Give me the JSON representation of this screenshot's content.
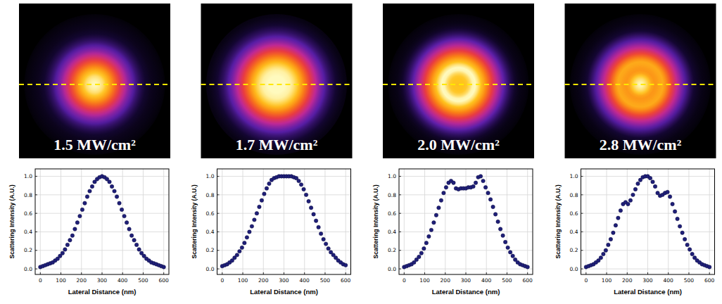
{
  "chart_data": [
    {
      "type": "scatter",
      "title": "1.5 MW/cm²",
      "x_label": "Lateral Distance (nm)",
      "y_label": "Scattering Intensity (A.U.)",
      "x": [
        0,
        12,
        24,
        36,
        48,
        60,
        72,
        84,
        96,
        108,
        120,
        132,
        144,
        156,
        168,
        180,
        192,
        204,
        216,
        228,
        240,
        252,
        264,
        276,
        288,
        300,
        312,
        324,
        336,
        348,
        360,
        372,
        384,
        396,
        408,
        420,
        432,
        444,
        456,
        468,
        480,
        492,
        504,
        516,
        528,
        540,
        552,
        564,
        576,
        588,
        600
      ],
      "values": [
        0.02,
        0.03,
        0.04,
        0.05,
        0.06,
        0.07,
        0.09,
        0.11,
        0.14,
        0.17,
        0.21,
        0.26,
        0.31,
        0.36,
        0.43,
        0.5,
        0.57,
        0.64,
        0.71,
        0.78,
        0.84,
        0.89,
        0.94,
        0.97,
        0.99,
        1.0,
        0.99,
        0.97,
        0.94,
        0.89,
        0.84,
        0.78,
        0.71,
        0.64,
        0.57,
        0.5,
        0.43,
        0.36,
        0.31,
        0.26,
        0.21,
        0.17,
        0.14,
        0.11,
        0.09,
        0.07,
        0.06,
        0.05,
        0.04,
        0.03,
        0.02
      ],
      "xlim": [
        -25,
        625
      ],
      "ylim": [
        -0.06,
        1.08
      ],
      "xticks": [
        0,
        100,
        200,
        300,
        400,
        500,
        600
      ],
      "yticks": [
        {
          "value": 0,
          "label": "0.0"
        },
        {
          "value": 0.2,
          "label": "0.2"
        },
        {
          "value": 0.4,
          "label": "0.4"
        },
        {
          "value": 0.6,
          "label": "0.6"
        },
        {
          "value": 0.8,
          "label": "0.8"
        },
        {
          "value": 1,
          "label": "1.0"
        }
      ],
      "grid": true,
      "marker": "circle",
      "color": "#1f1f78"
    },
    {
      "type": "scatter",
      "title": "1.7 MW/cm²",
      "x_label": "Lateral Distance (nm)",
      "y_label": "Scattering Intensity (A.U.)",
      "x": [
        0,
        12,
        24,
        36,
        48,
        60,
        72,
        84,
        96,
        108,
        120,
        132,
        144,
        156,
        168,
        180,
        192,
        204,
        216,
        228,
        240,
        252,
        264,
        276,
        288,
        300,
        312,
        324,
        336,
        348,
        360,
        372,
        384,
        396,
        408,
        420,
        432,
        444,
        456,
        468,
        480,
        492,
        504,
        516,
        528,
        540,
        552,
        564,
        576,
        588,
        600
      ],
      "values": [
        0.03,
        0.04,
        0.05,
        0.07,
        0.09,
        0.12,
        0.15,
        0.19,
        0.23,
        0.28,
        0.34,
        0.4,
        0.46,
        0.53,
        0.6,
        0.67,
        0.74,
        0.81,
        0.87,
        0.92,
        0.96,
        0.98,
        0.99,
        1,
        1,
        1,
        1,
        1,
        1,
        0.99,
        0.98,
        0.95,
        0.91,
        0.86,
        0.8,
        0.73,
        0.66,
        0.59,
        0.52,
        0.45,
        0.38,
        0.32,
        0.27,
        0.22,
        0.18,
        0.15,
        0.12,
        0.09,
        0.07,
        0.05,
        0.04
      ],
      "xlim": [
        -25,
        625
      ],
      "ylim": [
        -0.06,
        1.08
      ],
      "xticks": [
        0,
        100,
        200,
        300,
        400,
        500,
        600
      ],
      "yticks": [
        {
          "value": 0,
          "label": "0.0"
        },
        {
          "value": 0.2,
          "label": "0.2"
        },
        {
          "value": 0.4,
          "label": "0.4"
        },
        {
          "value": 0.6,
          "label": "0.6"
        },
        {
          "value": 0.8,
          "label": "0.8"
        },
        {
          "value": 1,
          "label": "1.0"
        }
      ],
      "grid": true,
      "marker": "circle",
      "color": "#1f1f78"
    },
    {
      "type": "scatter",
      "title": "2.0 MW/cm²",
      "x_label": "Lateral Distance (nm)",
      "y_label": "Scattering Intensity (A.U.)",
      "x": [
        0,
        12,
        24,
        36,
        48,
        60,
        72,
        84,
        96,
        108,
        120,
        132,
        144,
        156,
        168,
        180,
        192,
        204,
        216,
        228,
        240,
        252,
        264,
        276,
        288,
        300,
        312,
        324,
        336,
        348,
        360,
        372,
        384,
        396,
        408,
        420,
        432,
        444,
        456,
        468,
        480,
        492,
        504,
        516,
        528,
        540,
        552,
        564,
        576,
        588,
        600
      ],
      "values": [
        0.02,
        0.03,
        0.04,
        0.05,
        0.07,
        0.1,
        0.13,
        0.17,
        0.22,
        0.28,
        0.35,
        0.42,
        0.5,
        0.58,
        0.66,
        0.74,
        0.82,
        0.88,
        0.93,
        0.95,
        0.93,
        0.87,
        0.86,
        0.87,
        0.87,
        0.87,
        0.88,
        0.88,
        0.89,
        0.93,
        0.99,
        1.0,
        0.95,
        0.88,
        0.82,
        0.75,
        0.67,
        0.59,
        0.51,
        0.43,
        0.36,
        0.29,
        0.23,
        0.18,
        0.14,
        0.1,
        0.07,
        0.05,
        0.04,
        0.03,
        0.02
      ],
      "xlim": [
        -25,
        625
      ],
      "ylim": [
        -0.06,
        1.08
      ],
      "xticks": [
        0,
        100,
        200,
        300,
        400,
        500,
        600
      ],
      "yticks": [
        {
          "value": 0,
          "label": "0.0"
        },
        {
          "value": 0.2,
          "label": "0.2"
        },
        {
          "value": 0.4,
          "label": "0.4"
        },
        {
          "value": 0.6,
          "label": "0.6"
        },
        {
          "value": 0.8,
          "label": "0.8"
        },
        {
          "value": 1,
          "label": "1.0"
        }
      ],
      "grid": true,
      "marker": "circle",
      "color": "#1f1f78"
    },
    {
      "type": "scatter",
      "title": "2.8 MW/cm²",
      "x_label": "Lateral Distance (nm)",
      "y_label": "Scattering Intensity (A.U.)",
      "x": [
        0,
        12,
        24,
        36,
        48,
        60,
        72,
        84,
        96,
        108,
        120,
        132,
        144,
        156,
        168,
        180,
        192,
        204,
        216,
        228,
        240,
        252,
        264,
        276,
        288,
        300,
        312,
        324,
        336,
        348,
        360,
        372,
        384,
        396,
        408,
        420,
        432,
        444,
        456,
        468,
        480,
        492,
        504,
        516,
        528,
        540,
        552,
        564,
        576,
        588,
        600
      ],
      "values": [
        0.02,
        0.03,
        0.04,
        0.05,
        0.07,
        0.09,
        0.12,
        0.16,
        0.2,
        0.26,
        0.32,
        0.39,
        0.47,
        0.55,
        0.63,
        0.7,
        0.72,
        0.7,
        0.74,
        0.8,
        0.86,
        0.92,
        0.96,
        0.99,
        1.0,
        1.0,
        0.98,
        0.94,
        0.89,
        0.82,
        0.79,
        0.8,
        0.82,
        0.83,
        0.78,
        0.7,
        0.62,
        0.54,
        0.46,
        0.39,
        0.32,
        0.26,
        0.21,
        0.16,
        0.12,
        0.09,
        0.07,
        0.05,
        0.04,
        0.03,
        0.02
      ],
      "xlim": [
        -25,
        625
      ],
      "ylim": [
        -0.06,
        1.08
      ],
      "xticks": [
        0,
        100,
        200,
        300,
        400,
        500,
        600
      ],
      "yticks": [
        {
          "value": 0,
          "label": "0.0"
        },
        {
          "value": 0.2,
          "label": "0.2"
        },
        {
          "value": 0.4,
          "label": "0.4"
        },
        {
          "value": 0.6,
          "label": "0.6"
        },
        {
          "value": 0.8,
          "label": "0.8"
        },
        {
          "value": 1,
          "label": "1.0"
        }
      ],
      "grid": true,
      "marker": "circle",
      "color": "#1f1f78"
    }
  ]
}
